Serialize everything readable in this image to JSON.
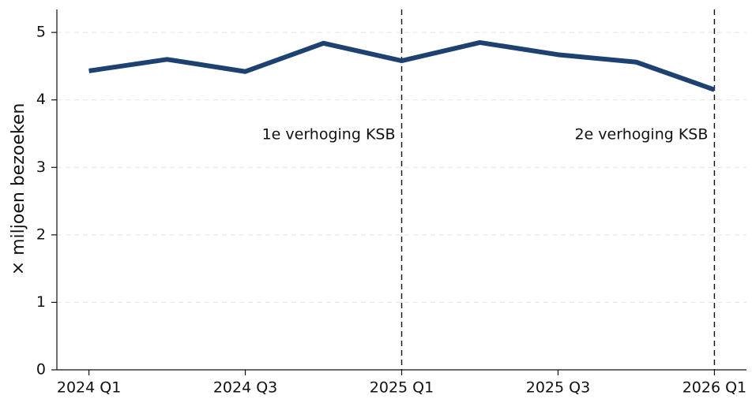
{
  "chart_data": {
    "type": "line",
    "ylabel": "× miljoen bezoeken",
    "categories": [
      "2024 Q1",
      null,
      "2024 Q3",
      null,
      "2025 Q1",
      null,
      "2025 Q3",
      null,
      "2026 Q1"
    ],
    "series": [
      {
        "name": "bezoeken",
        "color": "#1d4170",
        "values": [
          4.43,
          4.6,
          4.42,
          4.84,
          4.58,
          4.85,
          4.67,
          4.56,
          4.15
        ]
      }
    ],
    "xlim": [
      -0.41,
      8.41
    ],
    "ylim": [
      0,
      5.34
    ],
    "yticks": [
      0,
      1,
      2,
      3,
      4,
      5
    ],
    "grid": true,
    "annotations": [
      {
        "x": 4,
        "label": "1e verhoging KSB"
      },
      {
        "x": 8,
        "label": "2e verhoging KSB"
      }
    ]
  }
}
